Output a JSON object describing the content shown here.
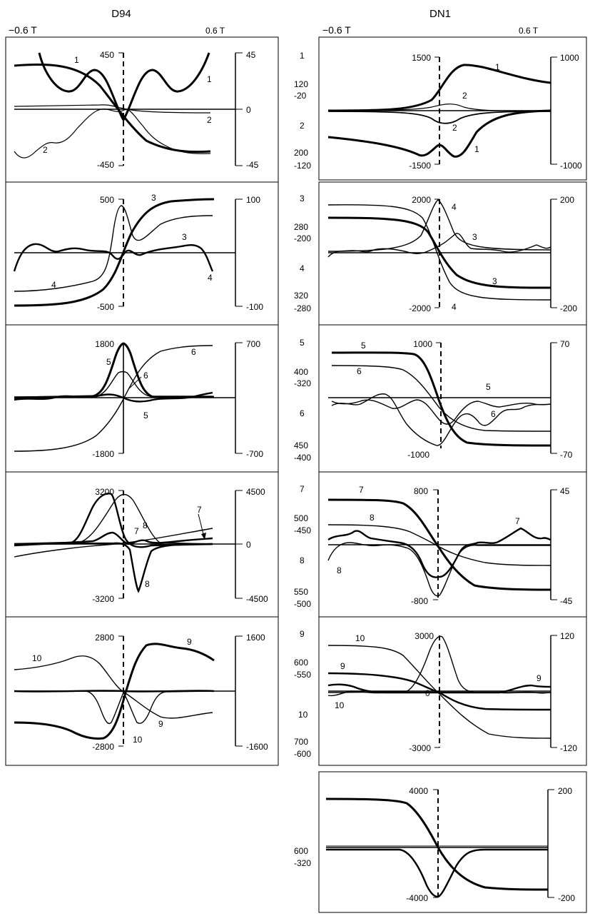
{
  "headers": {
    "left_title": "D94",
    "right_title": "DN1",
    "left_min": "−0.6 T",
    "left_max": "0.6 T",
    "right_min": "−0.6 T",
    "right_max": "0.6 T"
  },
  "chart_data": [
    {
      "type": "line",
      "panel": "D94-a",
      "left_axis": {
        "top": "450",
        "bottom": "-450"
      },
      "right_axis": {
        "top": "45",
        "mid": "0",
        "bottom": "-45"
      },
      "curve_labels": [
        "1",
        "1",
        "2",
        "2"
      ],
      "side_labels": []
    },
    {
      "type": "line",
      "panel": "DN1-a",
      "left_axis": {
        "top": "1500",
        "bottom": "-1500"
      },
      "right_axis": {
        "top": "1000",
        "bottom": "-1000"
      },
      "curve_labels": [
        "1",
        "2",
        "2",
        "1"
      ],
      "side_labels": [
        "1",
        "120",
        "-20",
        "2",
        "200",
        "-120"
      ]
    },
    {
      "type": "line",
      "panel": "D94-b",
      "left_axis": {
        "top": "500",
        "bottom": "-500"
      },
      "right_axis": {
        "top": "100",
        "bottom": "-100"
      },
      "curve_labels": [
        "3",
        "3",
        "4",
        "4"
      ],
      "side_labels": []
    },
    {
      "type": "line",
      "panel": "DN1-b",
      "left_axis": {
        "top": "2000",
        "bottom": "-2000"
      },
      "right_axis": {
        "top": "200",
        "bottom": "-200"
      },
      "curve_labels": [
        "4",
        "3",
        "3",
        "4"
      ],
      "side_labels": [
        "3",
        "280",
        "-200",
        "4",
        "320",
        "-280"
      ]
    },
    {
      "type": "line",
      "panel": "D94-c",
      "left_axis": {
        "top": "1800",
        "bottom": "-1800"
      },
      "right_axis": {
        "top": "700",
        "bottom": "-700"
      },
      "curve_labels": [
        "6",
        "5",
        "6",
        "5"
      ],
      "side_labels": []
    },
    {
      "type": "line",
      "panel": "DN1-c",
      "left_axis": {
        "top": "1000",
        "bottom": "-1000"
      },
      "right_axis": {
        "top": "70",
        "bottom": "-70"
      },
      "curve_labels": [
        "5",
        "6",
        "5",
        "6"
      ],
      "side_labels": [
        "5",
        "400",
        "-320",
        "6",
        "450",
        "-400"
      ]
    },
    {
      "type": "line",
      "panel": "D94-d",
      "left_axis": {
        "top": "3200",
        "bottom": "-3200"
      },
      "right_axis": {
        "top": "4500",
        "mid": "0",
        "bottom": "-4500"
      },
      "curve_labels": [
        "8",
        "7",
        "7",
        "8"
      ],
      "side_labels": []
    },
    {
      "type": "line",
      "panel": "DN1-d",
      "left_axis": {
        "top": "800",
        "bottom": "-800"
      },
      "right_axis": {
        "top": "45",
        "bottom": "-45"
      },
      "curve_labels": [
        "7",
        "8",
        "7",
        "8"
      ],
      "side_labels": [
        "7",
        "500",
        "-450",
        "8",
        "550",
        "-500"
      ]
    },
    {
      "type": "line",
      "panel": "D94-e",
      "left_axis": {
        "top": "2800",
        "bottom": "-2800"
      },
      "right_axis": {
        "top": "1600",
        "bottom": "-1600"
      },
      "curve_labels": [
        "10",
        "9",
        "9",
        "10"
      ],
      "side_labels": []
    },
    {
      "type": "line",
      "panel": "DN1-e",
      "left_axis": {
        "top": "3000",
        "mid": "0",
        "bottom": "-3000"
      },
      "right_axis": {
        "top": "120",
        "bottom": "-120"
      },
      "curve_labels": [
        "10",
        "9",
        "9",
        "10"
      ],
      "side_labels": [
        "9",
        "600",
        "-550",
        "10",
        "700",
        "-600"
      ]
    },
    {
      "type": "line",
      "panel": "DN1-f",
      "left_axis": {
        "top": "4000",
        "bottom": "-4000"
      },
      "right_axis": {
        "top": "200",
        "bottom": "-200"
      },
      "curve_labels": [],
      "side_labels": [
        "600",
        "-320"
      ]
    }
  ]
}
